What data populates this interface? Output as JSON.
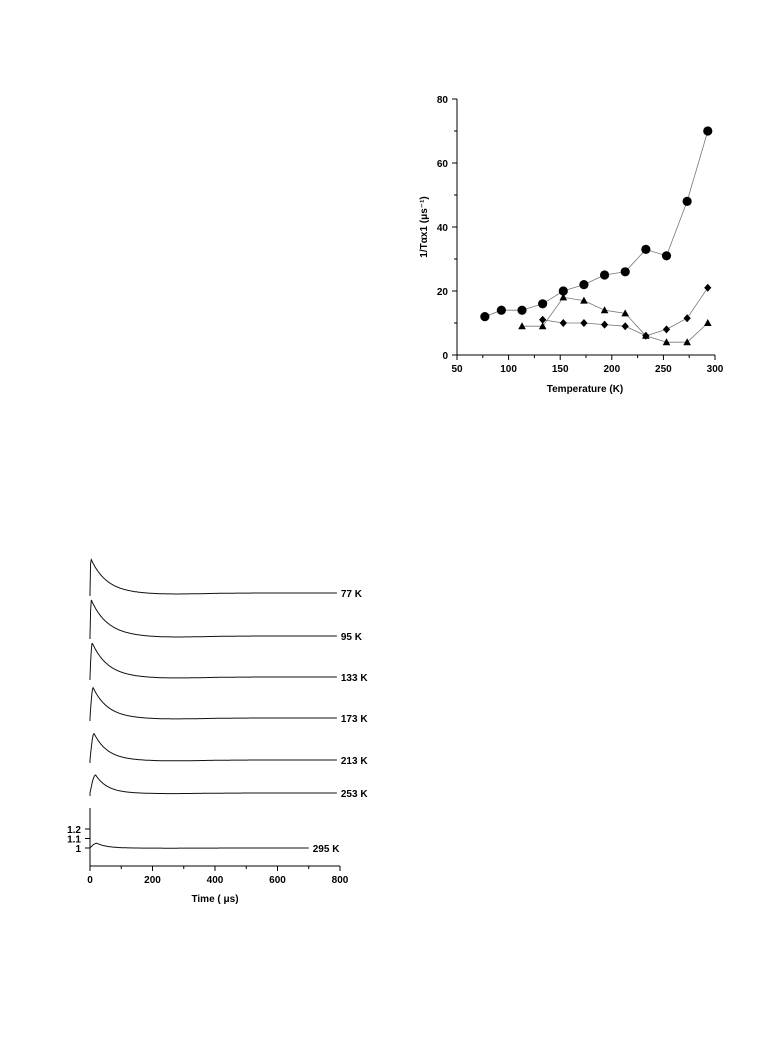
{
  "chart_data": [
    {
      "type": "scatter",
      "title": "",
      "xlabel": "Temperature (K)",
      "ylabel": "1/Tαx1 (μs⁻¹)",
      "xlim": [
        50,
        300
      ],
      "ylim": [
        0,
        80
      ],
      "xticks": [
        50,
        100,
        150,
        200,
        250,
        300
      ],
      "yticks": [
        0,
        20,
        40,
        60,
        80
      ],
      "grid": false,
      "series": [
        {
          "marker": "circle",
          "x": [
            77,
            93,
            113,
            133,
            153,
            173,
            193,
            213,
            233,
            253,
            273,
            293
          ],
          "y": [
            12,
            14,
            14,
            16,
            20,
            22,
            25,
            26,
            33,
            31,
            48,
            70
          ]
        },
        {
          "marker": "diamond",
          "x": [
            133,
            153,
            173,
            193,
            213,
            233,
            253,
            273,
            293
          ],
          "y": [
            11,
            10,
            10,
            9.5,
            9,
            6,
            8,
            11.5,
            21
          ]
        },
        {
          "marker": "triangle",
          "x": [
            113,
            133,
            153,
            173,
            193,
            213,
            233,
            253,
            273,
            293
          ],
          "y": [
            9,
            9,
            18,
            17,
            14,
            13,
            6,
            4,
            4,
            10
          ]
        }
      ]
    },
    {
      "type": "line",
      "title": "",
      "xlabel": "Time ( μs)",
      "ylabel": "",
      "xlim": [
        0,
        800
      ],
      "xticks": [
        0,
        200,
        400,
        600,
        800
      ],
      "yticks": [
        1,
        1.1,
        1.2
      ],
      "ytick_labels": [
        "1",
        "1.1",
        "1.2"
      ],
      "grid": false,
      "traces": [
        {
          "label": "77 K",
          "peak": 0.36,
          "peak_time": 3,
          "decay_time": 50
        },
        {
          "label": "95 K",
          "peak": 0.38,
          "peak_time": 4,
          "decay_time": 52
        },
        {
          "label": "133 K",
          "peak": 0.36,
          "peak_time": 7,
          "decay_time": 50
        },
        {
          "label": "173 K",
          "peak": 0.32,
          "peak_time": 10,
          "decay_time": 47
        },
        {
          "label": "213 K",
          "peak": 0.28,
          "peak_time": 13,
          "decay_time": 43
        },
        {
          "label": "253 K",
          "peak": 0.19,
          "peak_time": 18,
          "decay_time": 38
        },
        {
          "label": "295 K",
          "peak": 0.05,
          "peak_time": 22,
          "decay_time": 32
        }
      ]
    }
  ]
}
